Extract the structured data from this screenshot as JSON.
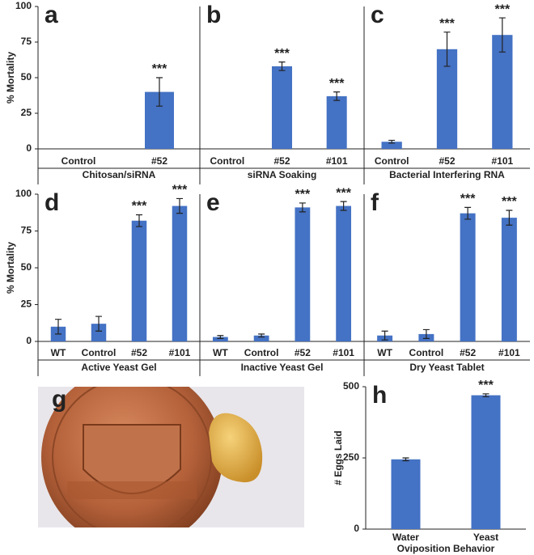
{
  "chart_data": [
    {
      "type": "bar",
      "label": "a",
      "ylabel": "% Mortality",
      "xlabel": "Chitosan/siRNA",
      "color": "#4472c4",
      "categories": [
        "Control",
        "#52"
      ],
      "values": [
        0,
        40
      ],
      "errors": [
        null,
        10
      ],
      "annotations": [
        null,
        "***"
      ],
      "ylim": [
        0,
        100
      ],
      "yticks": [
        0,
        25,
        50,
        75,
        100
      ]
    },
    {
      "type": "bar",
      "label": "b",
      "xlabel": "siRNA Soaking",
      "color": "#4472c4",
      "categories": [
        "Control",
        "#52",
        "#101"
      ],
      "values": [
        0,
        58,
        37
      ],
      "errors": [
        null,
        3,
        3
      ],
      "annotations": [
        null,
        "***",
        "***"
      ],
      "ylim": [
        0,
        100
      ]
    },
    {
      "type": "bar",
      "label": "c",
      "xlabel": "Bacterial Interfering RNA",
      "color": "#4472c4",
      "categories": [
        "Control",
        "#52",
        "#101"
      ],
      "values": [
        5,
        70,
        80
      ],
      "errors": [
        1,
        12,
        12
      ],
      "annotations": [
        null,
        "***",
        "***"
      ],
      "ylim": [
        0,
        100
      ]
    },
    {
      "type": "bar",
      "label": "d",
      "ylabel": "% Mortality",
      "xlabel": "Active Yeast Gel",
      "color": "#4472c4",
      "categories": [
        "WT",
        "Control",
        "#52",
        "#101"
      ],
      "values": [
        10,
        12,
        82,
        92
      ],
      "errors": [
        5,
        5,
        4,
        5
      ],
      "annotations": [
        null,
        null,
        "***",
        "***"
      ],
      "ylim": [
        0,
        100
      ],
      "yticks": [
        0,
        25,
        50,
        75,
        100
      ]
    },
    {
      "type": "bar",
      "label": "e",
      "xlabel": "Inactive Yeast Gel",
      "color": "#4472c4",
      "categories": [
        "WT",
        "Control",
        "#52",
        "#101"
      ],
      "values": [
        3,
        4,
        91,
        92
      ],
      "errors": [
        1,
        1,
        3,
        3
      ],
      "annotations": [
        null,
        null,
        "***",
        "***"
      ],
      "ylim": [
        0,
        100
      ]
    },
    {
      "type": "bar",
      "label": "f",
      "xlabel": "Dry Yeast Tablet",
      "color": "#4472c4",
      "categories": [
        "WT",
        "Control",
        "#52",
        "#101"
      ],
      "values": [
        4,
        5,
        87,
        84
      ],
      "errors": [
        3,
        3,
        4,
        5
      ],
      "annotations": [
        null,
        null,
        "***",
        "***"
      ],
      "ylim": [
        0,
        100
      ]
    },
    {
      "type": "bar",
      "label": "h",
      "ylabel": "# Eggs Laid",
      "xlabel": "Oviposition Behavior",
      "color": "#4472c4",
      "categories": [
        "Water",
        "Yeast"
      ],
      "values": [
        245,
        470
      ],
      "errors": [
        5,
        5
      ],
      "annotations": [
        null,
        "***"
      ],
      "ylim": [
        0,
        500
      ],
      "yticks": [
        0,
        250,
        500
      ]
    }
  ],
  "photo": {
    "label": "g"
  }
}
